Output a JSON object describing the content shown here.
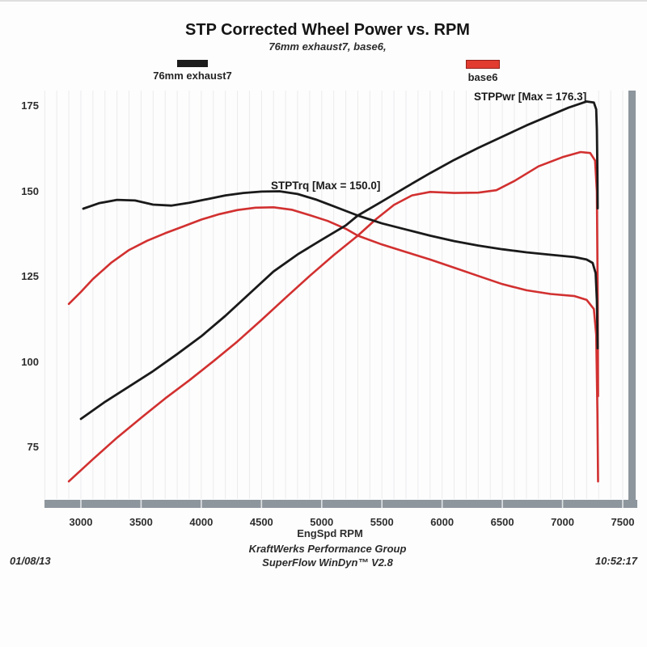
{
  "page": {
    "date": "01/08/13",
    "time": "10:52:17"
  },
  "chart": {
    "title": "STP Corrected Wheel Power vs. RPM",
    "subtitle": "76mm exhaust7, base6,"
  },
  "legend": {
    "items": [
      {
        "label": "76mm exhaust7",
        "color": "#1c1c1c"
      },
      {
        "label": "base6",
        "color": "#e23b30"
      }
    ]
  },
  "footer": {
    "line1": "KraftWerks Performance Group",
    "line2": "SuperFlow WinDyn™ V2.8"
  },
  "chart_data": {
    "type": "line",
    "title": "STP Corrected Wheel Power vs. RPM",
    "subtitle": "76mm exhaust7, base6,",
    "xlabel": "EngSpd RPM",
    "ylabel": "",
    "x_ticks": [
      3000,
      3500,
      4000,
      4500,
      5000,
      5500,
      6000,
      6500,
      7000,
      7500
    ],
    "y_ticks": [
      175,
      150,
      125,
      100,
      75
    ],
    "xlim": [
      2700,
      7630
    ],
    "ylim": [
      57,
      180
    ],
    "grid": "faint vertical minor gridlines every 100 RPM",
    "legend_position": "top",
    "annotations": [
      {
        "label": "STPPwr [Max = 176.3]",
        "series": "STPPwr",
        "max": 176.3
      },
      {
        "label": "STPTrq [Max = 150.0]",
        "series": "STPTrq",
        "max": 150.0
      }
    ],
    "axis_colors": {
      "axis_bar": "#8e969d",
      "grid": "#ebebee"
    },
    "series": [
      {
        "name": "base6 STPTrq",
        "color": "#d23030",
        "width": 2.6,
        "points": [
          [
            2900,
            117
          ],
          [
            3000,
            120.5
          ],
          [
            3100,
            124.3
          ],
          [
            3250,
            129
          ],
          [
            3400,
            132.8
          ],
          [
            3550,
            135.5
          ],
          [
            3700,
            137.7
          ],
          [
            3850,
            139.7
          ],
          [
            4000,
            141.7
          ],
          [
            4150,
            143.3
          ],
          [
            4300,
            144.5
          ],
          [
            4450,
            145.2
          ],
          [
            4600,
            145.3
          ],
          [
            4750,
            144.6
          ],
          [
            4900,
            143
          ],
          [
            5050,
            141.3
          ],
          [
            5200,
            139
          ],
          [
            5300,
            137
          ],
          [
            5500,
            134.4
          ],
          [
            5700,
            132.2
          ],
          [
            5900,
            130
          ],
          [
            6100,
            127.6
          ],
          [
            6300,
            125.2
          ],
          [
            6500,
            122.8
          ],
          [
            6700,
            121
          ],
          [
            6900,
            119.9
          ],
          [
            7100,
            119.3
          ],
          [
            7200,
            118.2
          ],
          [
            7260,
            115.5
          ],
          [
            7280,
            108
          ],
          [
            7290,
            85
          ],
          [
            7295,
            65
          ]
        ]
      },
      {
        "name": "base6 STPPwr",
        "color": "#d23030",
        "width": 2.6,
        "points": [
          [
            2900,
            65
          ],
          [
            3100,
            71.5
          ],
          [
            3300,
            77.8
          ],
          [
            3500,
            83.6
          ],
          [
            3700,
            89.3
          ],
          [
            3900,
            94.6
          ],
          [
            4100,
            100.2
          ],
          [
            4300,
            106
          ],
          [
            4500,
            112.3
          ],
          [
            4700,
            118.8
          ],
          [
            4900,
            125.2
          ],
          [
            5100,
            131.3
          ],
          [
            5300,
            137
          ],
          [
            5450,
            141.8
          ],
          [
            5600,
            146
          ],
          [
            5750,
            148.8
          ],
          [
            5900,
            149.8
          ],
          [
            6100,
            149.5
          ],
          [
            6300,
            149.6
          ],
          [
            6450,
            150.3
          ],
          [
            6600,
            153
          ],
          [
            6800,
            157.3
          ],
          [
            7000,
            160
          ],
          [
            7150,
            161.5
          ],
          [
            7230,
            161.2
          ],
          [
            7270,
            159
          ],
          [
            7285,
            150
          ],
          [
            7292,
            120
          ],
          [
            7295,
            90
          ]
        ]
      },
      {
        "name": "76mm exhaust7 STPTrq",
        "color": "#1a1a1a",
        "width": 2.8,
        "points": [
          [
            3020,
            144.9
          ],
          [
            3150,
            146.5
          ],
          [
            3300,
            147.5
          ],
          [
            3450,
            147.3
          ],
          [
            3600,
            146.1
          ],
          [
            3750,
            145.8
          ],
          [
            3900,
            146.6
          ],
          [
            4050,
            147.7
          ],
          [
            4200,
            148.8
          ],
          [
            4350,
            149.5
          ],
          [
            4500,
            149.9
          ],
          [
            4650,
            150.0
          ],
          [
            4800,
            149.2
          ],
          [
            4950,
            147.6
          ],
          [
            5100,
            145.6
          ],
          [
            5300,
            142.9
          ],
          [
            5500,
            140.6
          ],
          [
            5700,
            138.8
          ],
          [
            5900,
            137
          ],
          [
            6100,
            135.4
          ],
          [
            6300,
            134.1
          ],
          [
            6500,
            133
          ],
          [
            6700,
            132.1
          ],
          [
            6900,
            131.4
          ],
          [
            7100,
            130.7
          ],
          [
            7200,
            130
          ],
          [
            7250,
            129
          ],
          [
            7275,
            126
          ],
          [
            7285,
            118
          ],
          [
            7290,
            109
          ],
          [
            7292,
            104
          ]
        ]
      },
      {
        "name": "76mm exhaust7 STPPwr",
        "color": "#1a1a1a",
        "width": 2.8,
        "points": [
          [
            3000,
            83.3
          ],
          [
            3200,
            88.3
          ],
          [
            3400,
            92.8
          ],
          [
            3600,
            97.3
          ],
          [
            3800,
            102.3
          ],
          [
            4000,
            107.5
          ],
          [
            4200,
            113.5
          ],
          [
            4400,
            120
          ],
          [
            4600,
            126.5
          ],
          [
            4800,
            131.5
          ],
          [
            5000,
            135.8
          ],
          [
            5200,
            140
          ],
          [
            5300,
            142.9
          ],
          [
            5500,
            147
          ],
          [
            5700,
            151.2
          ],
          [
            5900,
            155.3
          ],
          [
            6100,
            159.2
          ],
          [
            6300,
            162.7
          ],
          [
            6500,
            166
          ],
          [
            6700,
            169.3
          ],
          [
            6900,
            172.3
          ],
          [
            7050,
            174.5
          ],
          [
            7200,
            176.3
          ],
          [
            7260,
            176
          ],
          [
            7280,
            174
          ],
          [
            7285,
            168
          ],
          [
            7290,
            155
          ],
          [
            7292,
            145
          ]
        ]
      }
    ]
  }
}
